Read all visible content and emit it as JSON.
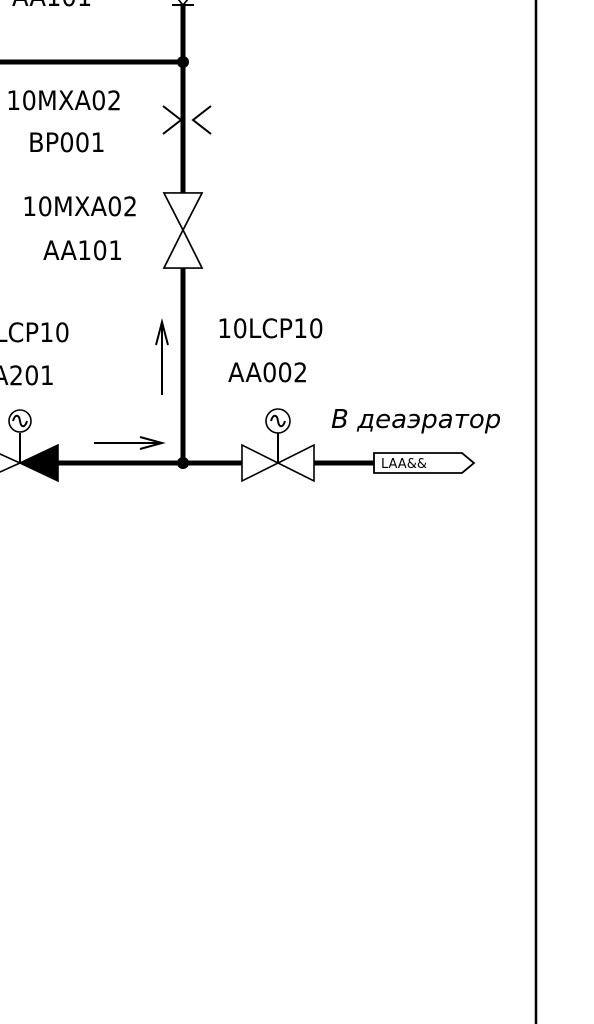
{
  "drawing": {
    "labels": {
      "top_partial": "AA101",
      "orifice_code": "10MXA02",
      "orifice_tag": "BP001",
      "valve_upper_code": "10MXA02",
      "valve_upper_tag": "AA101",
      "left_valve_code": "LCP10",
      "left_valve_tag": "A201",
      "right_valve_code": "10LCP10",
      "right_valve_tag": "AA002",
      "destination": "В деаэратор",
      "connector_tag": "LAA&&"
    }
  },
  "colors": {
    "line": "#000000",
    "background": "#ffffff"
  }
}
